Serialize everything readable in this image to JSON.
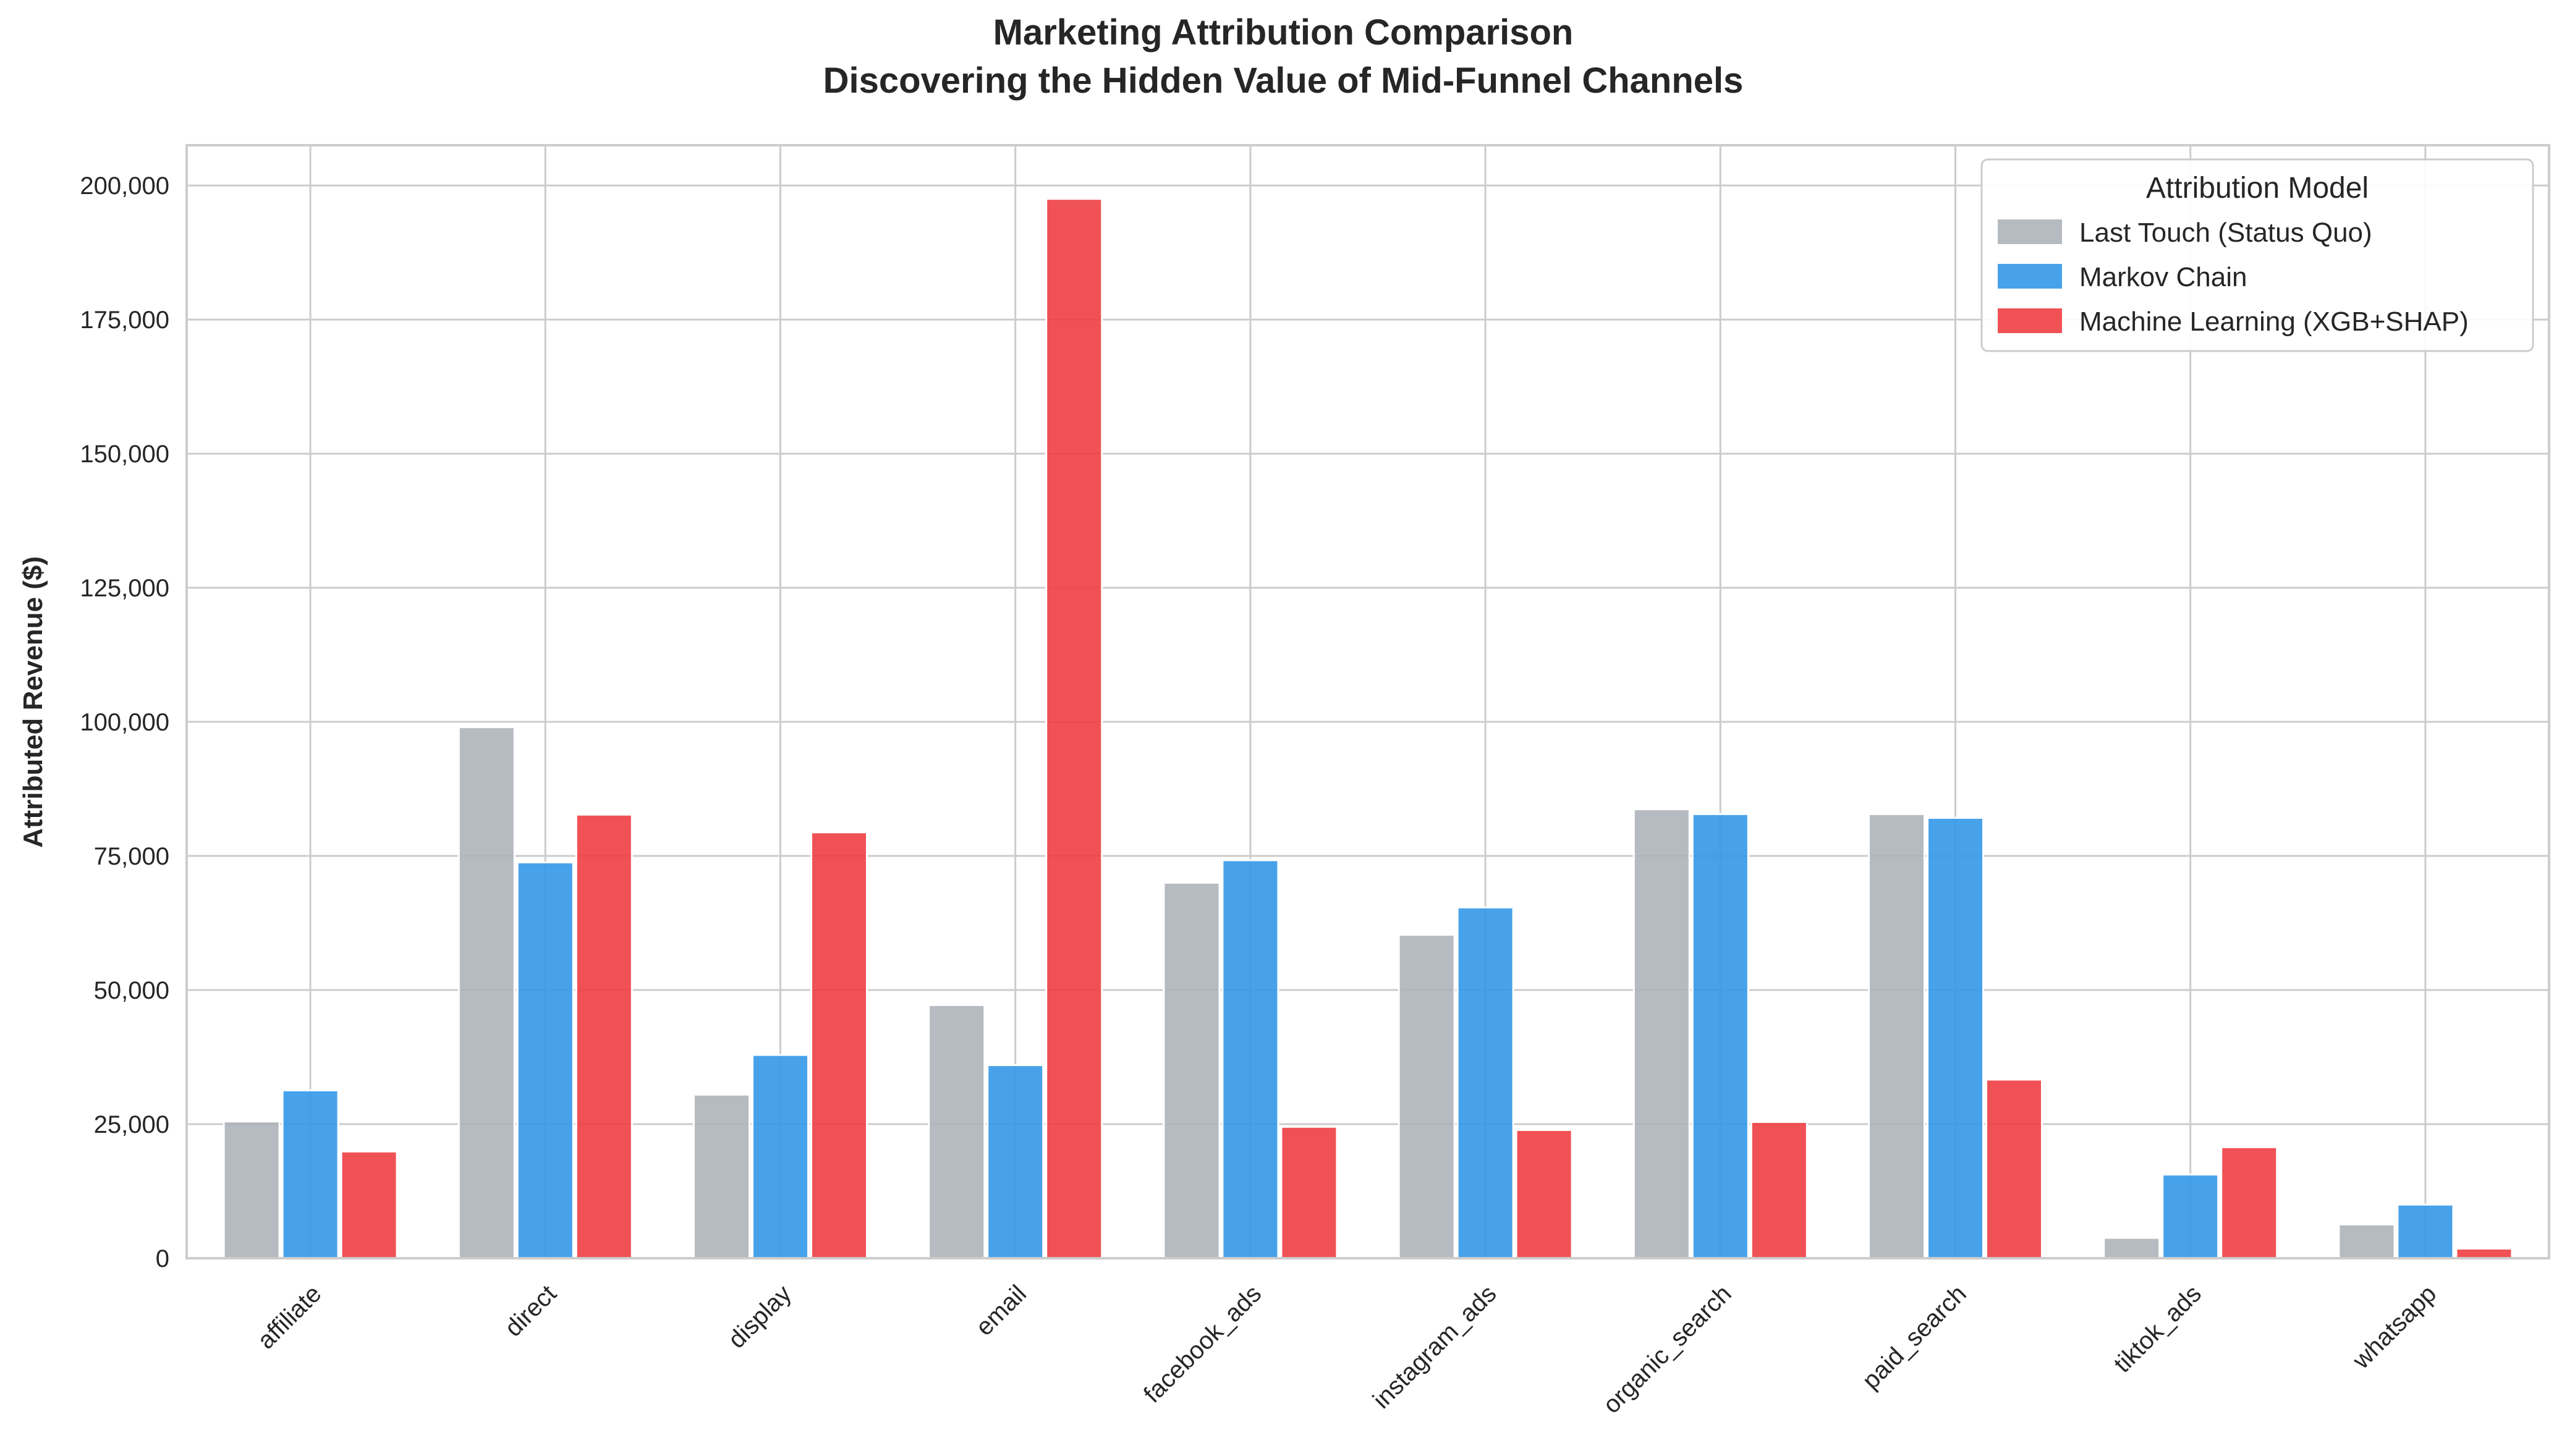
{
  "chart_data": {
    "type": "bar",
    "title": "Marketing Attribution Comparison",
    "subtitle": "Discovering the Hidden Value of Mid-Funnel Channels",
    "xlabel": "",
    "ylabel": "Attributed Revenue ($)",
    "ylim": [
      0,
      207500
    ],
    "yticks": [
      0,
      25000,
      50000,
      75000,
      100000,
      125000,
      150000,
      175000,
      200000
    ],
    "ytick_labels": [
      "0",
      "25,000",
      "50,000",
      "75,000",
      "100,000",
      "125,000",
      "150,000",
      "175,000",
      "200,000"
    ],
    "grid": true,
    "categories": [
      "affiliate",
      "direct",
      "display",
      "email",
      "facebook_ads",
      "instagram_ads",
      "organic_search",
      "paid_search",
      "tiktok_ads",
      "whatsapp"
    ],
    "legend": {
      "title": "Attribution Model",
      "position": "top-right"
    },
    "series": [
      {
        "name": "Last Touch (Status Quo)",
        "color": "#AEB4BA",
        "values": [
          25500,
          99000,
          30500,
          47200,
          70000,
          60300,
          83700,
          82800,
          3800,
          6300
        ]
      },
      {
        "name": "Markov Chain",
        "color": "#3498E8",
        "values": [
          31300,
          73800,
          37900,
          36000,
          74200,
          65400,
          82800,
          82100,
          15600,
          10000
        ]
      },
      {
        "name": "Machine Learning (XGB+SHAP)",
        "color": "#EE3E42",
        "values": [
          19900,
          82700,
          79400,
          197500,
          24500,
          23900,
          25400,
          33300,
          20700,
          1800
        ]
      }
    ]
  }
}
